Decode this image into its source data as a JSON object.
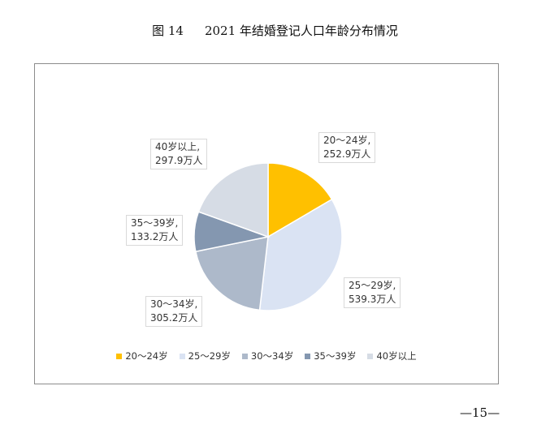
{
  "figure": {
    "number": "图 14",
    "title": "2021 年结婚登记人口年龄分布情况"
  },
  "page_number": "—15—",
  "chart_data": {
    "type": "pie",
    "title": "2021 年结婚登记人口年龄分布情况",
    "unit": "万人",
    "categories": [
      "20～24岁",
      "25～29岁",
      "30～34岁",
      "35～39岁",
      "40岁以上"
    ],
    "values": [
      252.9,
      539.3,
      305.2,
      133.2,
      297.9
    ],
    "value_labels": [
      "252.9万人",
      "539.3万人",
      "305.2万人",
      "133.2万人",
      "297.9万人"
    ],
    "category_labels": [
      "20～24岁,",
      "25～29岁,",
      "30～34岁,",
      "35～39岁,",
      "40岁以上,"
    ],
    "colors": [
      "#FFC000",
      "#DAE3F3",
      "#ADB9CA",
      "#8497B0",
      "#D6DCE5"
    ],
    "legend": {
      "position": "bottom",
      "entries": [
        "20～24岁",
        "25～29岁",
        "30～34岁",
        "35～39岁",
        "40岁以上"
      ]
    }
  }
}
